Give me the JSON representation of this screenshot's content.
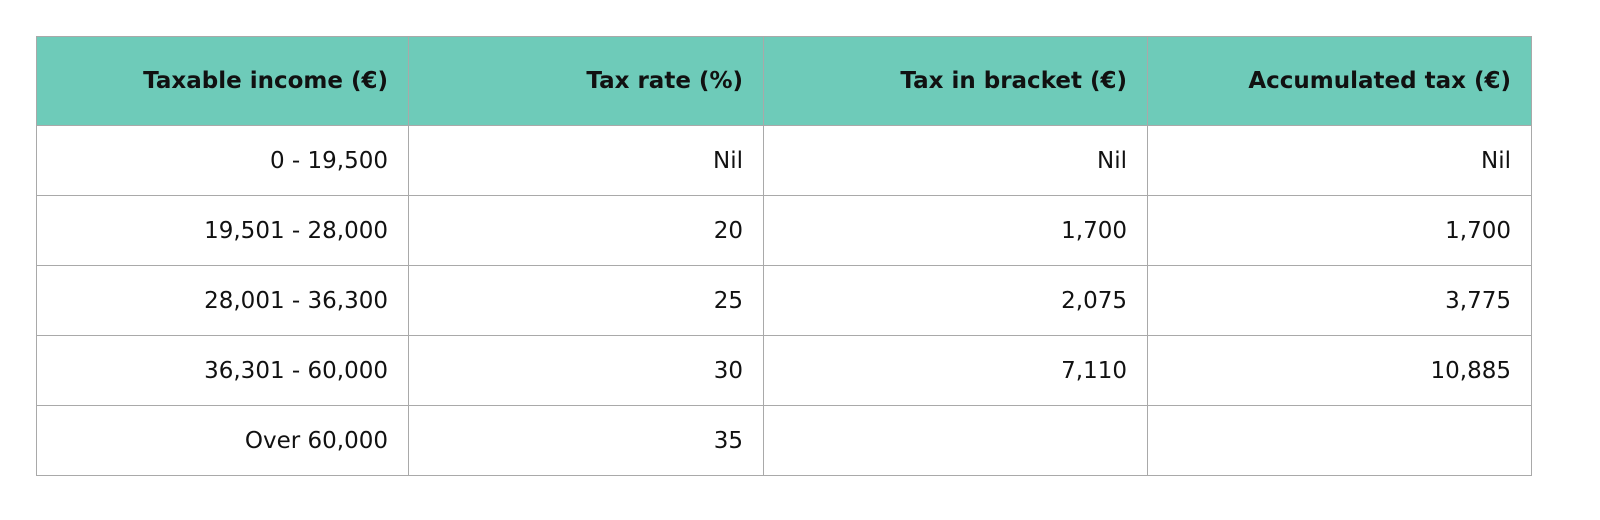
{
  "table": {
    "headers": [
      "Taxable income (€)",
      "Tax rate (%)",
      "Tax in bracket (€)",
      "Accumulated tax (€)"
    ],
    "rows": [
      [
        "0 - 19,500",
        "Nil",
        "Nil",
        "Nil"
      ],
      [
        "19,501 - 28,000",
        "20",
        "1,700",
        "1,700"
      ],
      [
        "28,001 - 36,300",
        "25",
        "2,075",
        "3,775"
      ],
      [
        "36,301 - 60,000",
        "30",
        "7,110",
        "10,885"
      ],
      [
        "Over 60,000",
        "35"
      ]
    ]
  }
}
